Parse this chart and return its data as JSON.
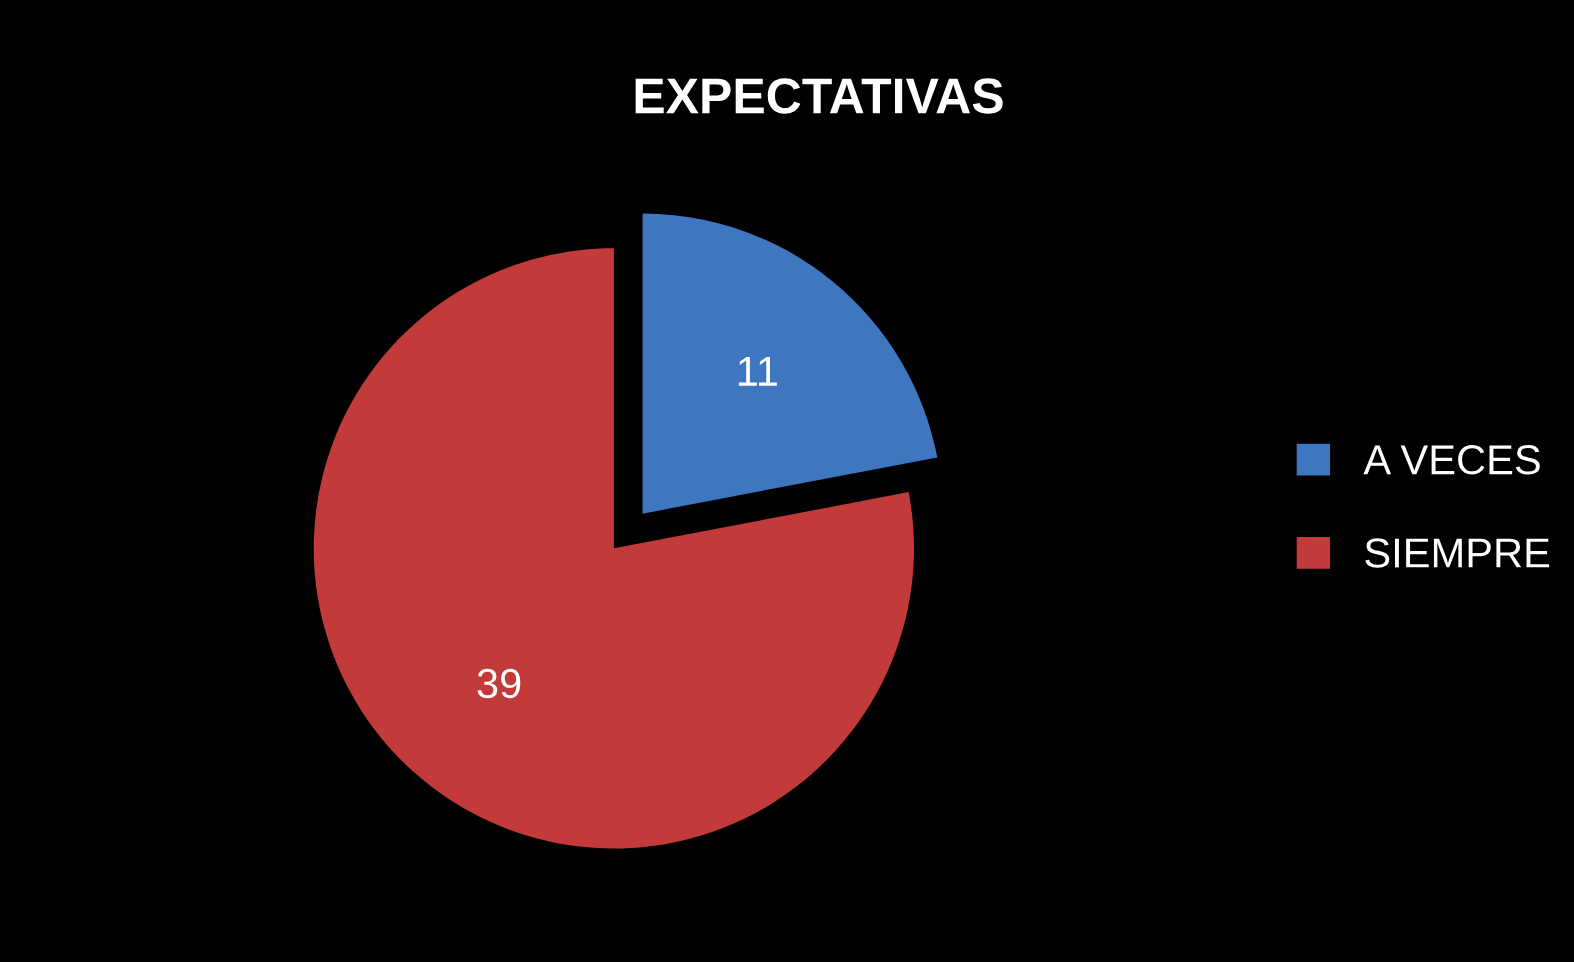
{
  "chart_data": {
    "type": "pie",
    "title": "EXPECTATIVAS",
    "categories": [
      "A VECES",
      "SIEMPRE"
    ],
    "values": [
      11,
      39
    ],
    "colors": [
      "#3f76c0",
      "#c23b3a"
    ],
    "data_labels": true,
    "legend": "right"
  }
}
